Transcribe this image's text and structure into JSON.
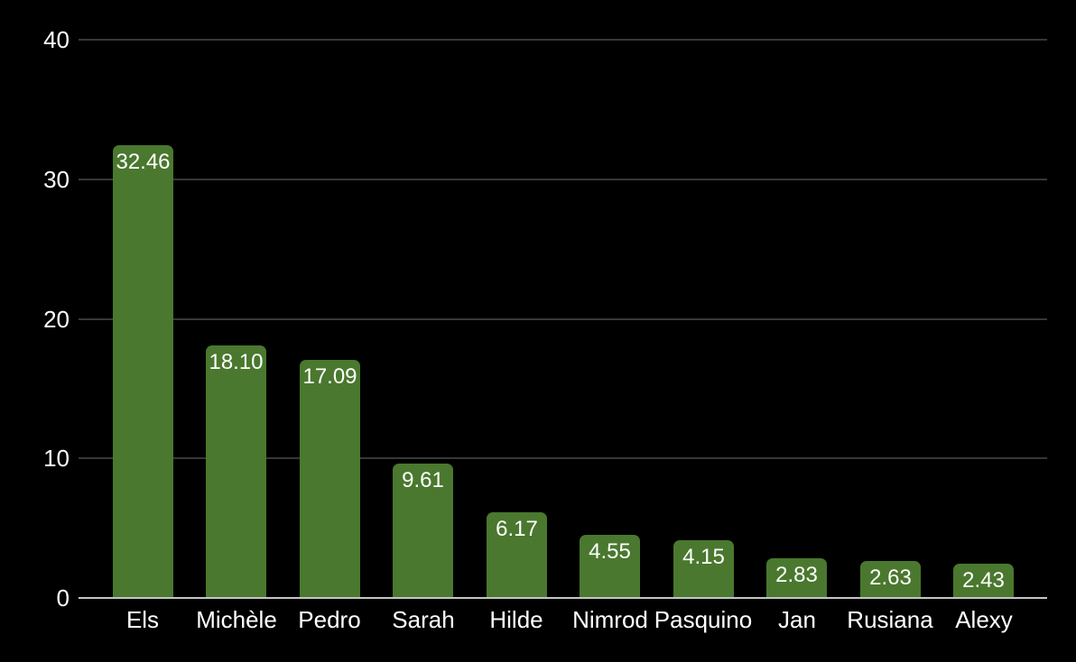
{
  "chart_data": {
    "type": "bar",
    "categories": [
      "Els",
      "Michèle",
      "Pedro",
      "Sarah",
      "Hilde",
      "Nimrod",
      "Pasquino",
      "Jan",
      "Rusiana",
      "Alexy"
    ],
    "values": [
      32.46,
      18.1,
      17.09,
      9.61,
      6.17,
      4.55,
      4.15,
      2.83,
      2.63,
      2.43
    ],
    "value_labels": [
      "32.46",
      "18.10",
      "17.09",
      "9.61",
      "6.17",
      "4.55",
      "4.15",
      "2.83",
      "2.63",
      "2.43"
    ],
    "title": "",
    "xlabel": "",
    "ylabel": "",
    "ylim": [
      0,
      40
    ],
    "yticks": [
      0,
      10,
      20,
      30,
      40
    ],
    "grid": true,
    "legend_position": "none",
    "colors": {
      "bar": "#4a782e",
      "grid": "#373737",
      "axis_line": "#c4c4c4",
      "text": "#ffffff",
      "background": "#000000"
    }
  }
}
